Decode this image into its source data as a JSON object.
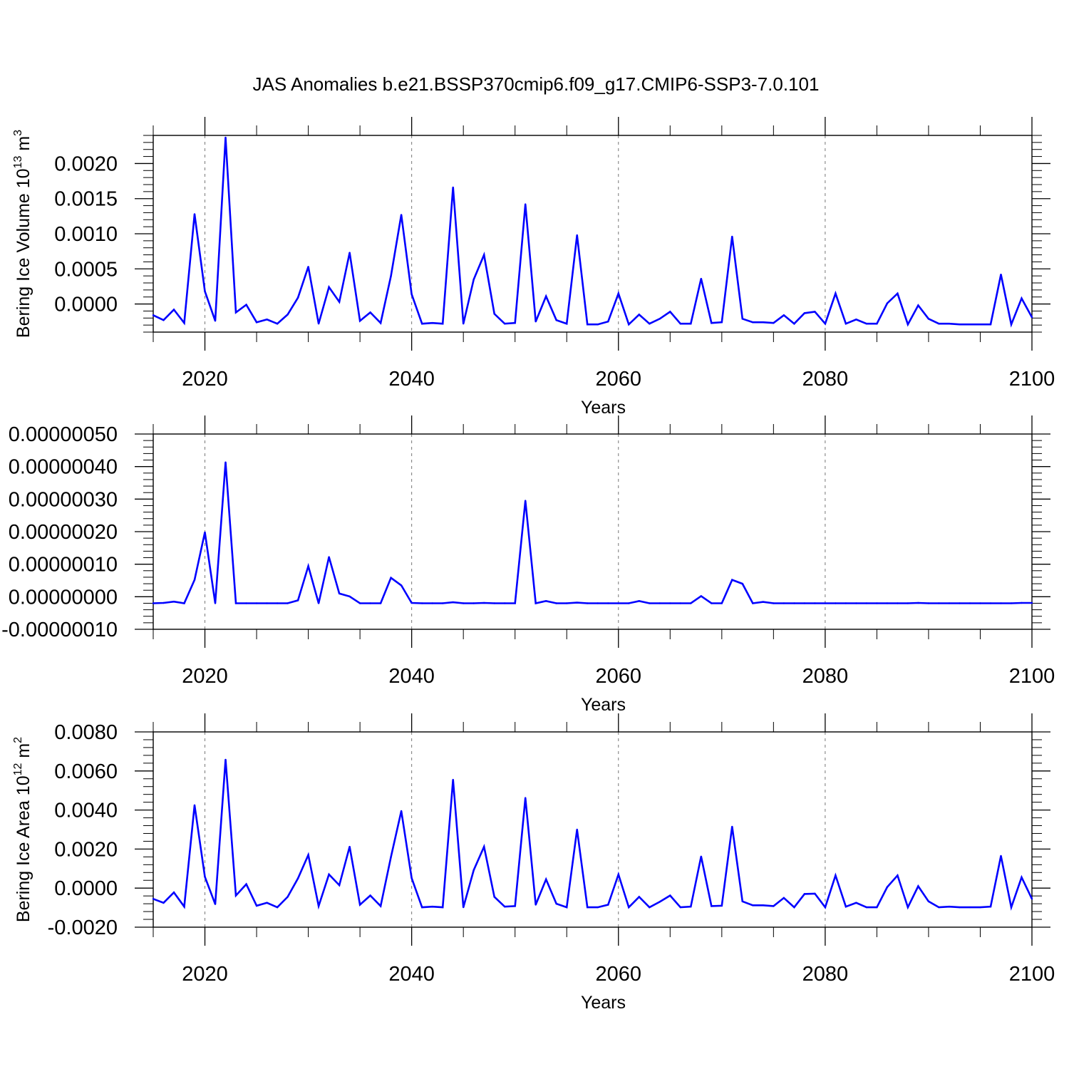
{
  "figure": {
    "title": "JAS Anomalies b.e21.BSSP370cmip6.f09_g17.CMIP6-SSP3-7.0.101"
  },
  "chart_data": [
    {
      "type": "line",
      "title": "",
      "xlabel": "Years",
      "ylabel": "Bering Ice Volume 10",
      "ylabel_exponent": "13",
      "ylabel_unit": "m",
      "ylabel_unit_exponent": "3",
      "xlim": [
        2015,
        2100
      ],
      "ylim": [
        -0.0004,
        0.0024
      ],
      "x_ticks": [
        2020,
        2040,
        2060,
        2080,
        2100
      ],
      "x_tick_labels": [
        "2020",
        "2040",
        "2060",
        "2080",
        "2100"
      ],
      "y_ticks": [
        0.0,
        0.0005,
        0.001,
        0.0015,
        0.002
      ],
      "y_tick_labels": [
        "0.0000",
        "0.0005",
        "0.0010",
        "0.0015",
        "0.0020"
      ],
      "grid": "vertical-dashed",
      "line_color": "#0000ff",
      "x": [
        2015,
        2016,
        2017,
        2018,
        2019,
        2020,
        2021,
        2022,
        2023,
        2024,
        2025,
        2026,
        2027,
        2028,
        2029,
        2030,
        2031,
        2032,
        2033,
        2034,
        2035,
        2036,
        2037,
        2038,
        2039,
        2040,
        2041,
        2042,
        2043,
        2044,
        2045,
        2046,
        2047,
        2048,
        2049,
        2050,
        2051,
        2052,
        2053,
        2054,
        2055,
        2056,
        2057,
        2058,
        2059,
        2060,
        2061,
        2062,
        2063,
        2064,
        2065,
        2066,
        2067,
        2068,
        2069,
        2070,
        2071,
        2072,
        2073,
        2074,
        2075,
        2076,
        2077,
        2078,
        2079,
        2080,
        2081,
        2082,
        2083,
        2084,
        2085,
        2086,
        2087,
        2088,
        2089,
        2090,
        2091,
        2092,
        2093,
        2094,
        2095,
        2096,
        2097,
        2098,
        2099,
        2100
      ],
      "series": [
        {
          "values": [
            -0.00016,
            -0.00023,
            -8e-05,
            -0.00027,
            0.00128,
            0.00018,
            -0.00024,
            0.00237,
            -0.00012,
            -1e-05,
            -0.00026,
            -0.00022,
            -0.00028,
            -0.00015,
            9e-05,
            0.00053,
            -0.00028,
            0.00024,
            3e-05,
            0.00073,
            -0.00024,
            -0.00012,
            -0.00027,
            0.0004,
            0.00127,
            0.00014,
            -0.00028,
            -0.00027,
            -0.00028,
            0.00166,
            -0.00028,
            0.00035,
            0.0007,
            -0.00014,
            -0.00028,
            -0.00027,
            0.00142,
            -0.00025,
            0.00011,
            -0.00023,
            -0.00028,
            0.00098,
            -0.00029,
            -0.00029,
            -0.00025,
            0.00015,
            -0.00029,
            -0.00015,
            -0.00028,
            -0.00021,
            -0.00011,
            -0.00028,
            -0.00028,
            0.00036,
            -0.00027,
            -0.00026,
            0.00096,
            -0.00021,
            -0.00026,
            -0.00026,
            -0.00027,
            -0.00016,
            -0.00028,
            -0.00013,
            -0.00011,
            -0.00028,
            0.00015,
            -0.00028,
            -0.00022,
            -0.00028,
            -0.00028,
            1e-05,
            0.00015,
            -0.00029,
            -2e-05,
            -0.00021,
            -0.00028,
            -0.00028,
            -0.00029,
            -0.00029,
            -0.00029,
            -0.00029,
            0.00042,
            -0.00029,
            8e-05,
            -0.00019
          ]
        }
      ]
    },
    {
      "type": "line",
      "title": "",
      "xlabel": "Years",
      "ylabel": "",
      "xlim": [
        2015,
        2100
      ],
      "ylim": [
        -1e-07,
        5e-07
      ],
      "x_ticks": [
        2020,
        2040,
        2060,
        2080,
        2100
      ],
      "x_tick_labels": [
        "2020",
        "2040",
        "2060",
        "2080",
        "2100"
      ],
      "y_ticks": [
        -1e-07,
        0.0,
        1e-07,
        2e-07,
        3e-07,
        4e-07,
        5e-07
      ],
      "y_tick_labels": [
        "-0.00000010",
        "0.00000000",
        "0.00000010",
        "0.00000020",
        "0.00000030",
        "0.00000040",
        "0.00000050"
      ],
      "grid": "vertical-dashed",
      "line_color": "#0000ff",
      "x": [
        2015,
        2016,
        2017,
        2018,
        2019,
        2020,
        2021,
        2022,
        2023,
        2024,
        2025,
        2026,
        2027,
        2028,
        2029,
        2030,
        2031,
        2032,
        2033,
        2034,
        2035,
        2036,
        2037,
        2038,
        2039,
        2040,
        2041,
        2042,
        2043,
        2044,
        2045,
        2046,
        2047,
        2048,
        2049,
        2050,
        2051,
        2052,
        2053,
        2054,
        2055,
        2056,
        2057,
        2058,
        2059,
        2060,
        2061,
        2062,
        2063,
        2064,
        2065,
        2066,
        2067,
        2068,
        2069,
        2070,
        2071,
        2072,
        2073,
        2074,
        2075,
        2076,
        2077,
        2078,
        2079,
        2080,
        2081,
        2082,
        2083,
        2084,
        2085,
        2086,
        2087,
        2088,
        2089,
        2090,
        2091,
        2092,
        2093,
        2094,
        2095,
        2096,
        2097,
        2098,
        2099,
        2100
      ],
      "series": [
        {
          "values": [
            -2e-08,
            -1.9e-08,
            -1.5e-08,
            -2e-08,
            5.2e-08,
            1.98e-07,
            -2e-08,
            4.13e-07,
            -2e-08,
            -2e-08,
            -2e-08,
            -2e-08,
            -2e-08,
            -2e-08,
            -1.1e-08,
            9.4e-08,
            -2e-08,
            1.22e-07,
            1e-08,
            1e-09,
            -2e-08,
            -2e-08,
            -2e-08,
            5.8e-08,
            3.5e-08,
            -1.9e-08,
            -2e-08,
            -2e-08,
            -2e-08,
            -1.7e-08,
            -2e-08,
            -2e-08,
            -1.9e-08,
            -2e-08,
            -2e-08,
            -2e-08,
            2.95e-07,
            -2e-08,
            -1.3e-08,
            -2e-08,
            -2e-08,
            -1.8e-08,
            -2e-08,
            -2e-08,
            -2e-08,
            -2e-08,
            -2e-08,
            -1.3e-08,
            -2e-08,
            -2e-08,
            -2e-08,
            -2e-08,
            -2e-08,
            2e-09,
            -2e-08,
            -2e-08,
            5.2e-08,
            4e-08,
            -2e-08,
            -1.6e-08,
            -2e-08,
            -2e-08,
            -2e-08,
            -2e-08,
            -2e-08,
            -2e-08,
            -2e-08,
            -2e-08,
            -2e-08,
            -2e-08,
            -2e-08,
            -2e-08,
            -2e-08,
            -2e-08,
            -1.9e-08,
            -2e-08,
            -2e-08,
            -2e-08,
            -2e-08,
            -2e-08,
            -2e-08,
            -2e-08,
            -2e-08,
            -2e-08,
            -1.9e-08,
            -1.9e-08
          ]
        }
      ]
    },
    {
      "type": "line",
      "title": "",
      "xlabel": "Years",
      "ylabel": "Bering Ice Area 10",
      "ylabel_exponent": "12",
      "ylabel_unit": "m",
      "ylabel_unit_exponent": "2",
      "xlim": [
        2015,
        2100
      ],
      "ylim": [
        -0.002,
        0.008
      ],
      "x_ticks": [
        2020,
        2040,
        2060,
        2080,
        2100
      ],
      "x_tick_labels": [
        "2020",
        "2040",
        "2060",
        "2080",
        "2100"
      ],
      "y_ticks": [
        -0.002,
        0.0,
        0.002,
        0.004,
        0.006,
        0.008
      ],
      "y_tick_labels": [
        "-0.0020",
        "0.0000",
        "0.0020",
        "0.0040",
        "0.0060",
        "0.0080"
      ],
      "grid": "vertical-dashed",
      "line_color": "#0000ff",
      "x": [
        2015,
        2016,
        2017,
        2018,
        2019,
        2020,
        2021,
        2022,
        2023,
        2024,
        2025,
        2026,
        2027,
        2028,
        2029,
        2030,
        2031,
        2032,
        2033,
        2034,
        2035,
        2036,
        2037,
        2038,
        2039,
        2040,
        2041,
        2042,
        2043,
        2044,
        2045,
        2046,
        2047,
        2048,
        2049,
        2050,
        2051,
        2052,
        2053,
        2054,
        2055,
        2056,
        2057,
        2058,
        2059,
        2060,
        2061,
        2062,
        2063,
        2064,
        2065,
        2066,
        2067,
        2068,
        2069,
        2070,
        2071,
        2072,
        2073,
        2074,
        2075,
        2076,
        2077,
        2078,
        2079,
        2080,
        2081,
        2082,
        2083,
        2084,
        2085,
        2086,
        2087,
        2088,
        2089,
        2090,
        2091,
        2092,
        2093,
        2094,
        2095,
        2096,
        2097,
        2098,
        2099,
        2100
      ],
      "series": [
        {
          "values": [
            -0.00055,
            -0.00075,
            -0.00022,
            -0.00095,
            0.00425,
            0.00058,
            -0.00082,
            0.00658,
            -0.00038,
            0.0002,
            -0.0009,
            -0.00075,
            -0.00098,
            -0.00045,
            0.0005,
            0.0017,
            -0.00092,
            0.0007,
            0.00015,
            0.00212,
            -0.00085,
            -0.00038,
            -0.00092,
            0.0016,
            0.00395,
            0.00052,
            -0.00098,
            -0.00095,
            -0.00098,
            0.00555,
            -0.00098,
            0.00092,
            0.00212,
            -0.00045,
            -0.00095,
            -0.00092,
            0.00462,
            -0.00085,
            0.00045,
            -0.0008,
            -0.00098,
            0.003,
            -0.00098,
            -0.00098,
            -0.00085,
            0.0007,
            -0.00098,
            -0.00045,
            -0.00098,
            -0.0007,
            -0.00038,
            -0.00098,
            -0.00095,
            0.00162,
            -0.00092,
            -0.0009,
            0.00315,
            -0.00068,
            -0.00088,
            -0.00088,
            -0.00092,
            -0.0005,
            -0.00098,
            -0.0003,
            -0.00028,
            -0.00098,
            0.00065,
            -0.00095,
            -0.00075,
            -0.00098,
            -0.00098,
            5e-05,
            0.00065,
            -0.00098,
            0.0001,
            -0.00068,
            -0.00098,
            -0.00095,
            -0.00098,
            -0.00098,
            -0.00098,
            -0.00095,
            0.00165,
            -0.00098,
            0.00055,
            -0.00055
          ]
        }
      ]
    }
  ]
}
